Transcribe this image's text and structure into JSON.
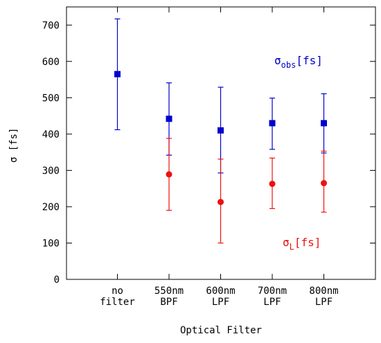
{
  "chart_data": {
    "type": "scatter",
    "title": "",
    "xlabel": "Optical Filter",
    "ylabel": "σ [fs]",
    "ylim": [
      0,
      750
    ],
    "yticks": [
      0,
      100,
      200,
      300,
      400,
      500,
      600,
      700
    ],
    "grid": false,
    "categories": [
      [
        "no",
        "filter"
      ],
      [
        "550nm",
        "BPF"
      ],
      [
        "600nm",
        "LPF"
      ],
      [
        "700nm",
        "LPF"
      ],
      [
        "800nm",
        "LPF"
      ]
    ],
    "series": [
      {
        "name_main": "σ",
        "name_sub": "obs",
        "name_suffix": "[fs]",
        "color": "#0000cc",
        "marker": "square",
        "values": [
          565,
          442,
          410,
          430,
          430
        ],
        "err_low": [
          412,
          342,
          293,
          358,
          348
        ],
        "err_high": [
          717,
          541,
          529,
          499,
          511
        ]
      },
      {
        "name_main": "σ",
        "name_sub": "L",
        "name_suffix": "[fs]",
        "color": "#ee1111",
        "marker": "circle",
        "values": [
          null,
          289,
          213,
          263,
          265
        ],
        "err_low": [
          null,
          190,
          100,
          195,
          185
        ],
        "err_high": [
          null,
          388,
          331,
          334,
          353
        ]
      }
    ]
  }
}
